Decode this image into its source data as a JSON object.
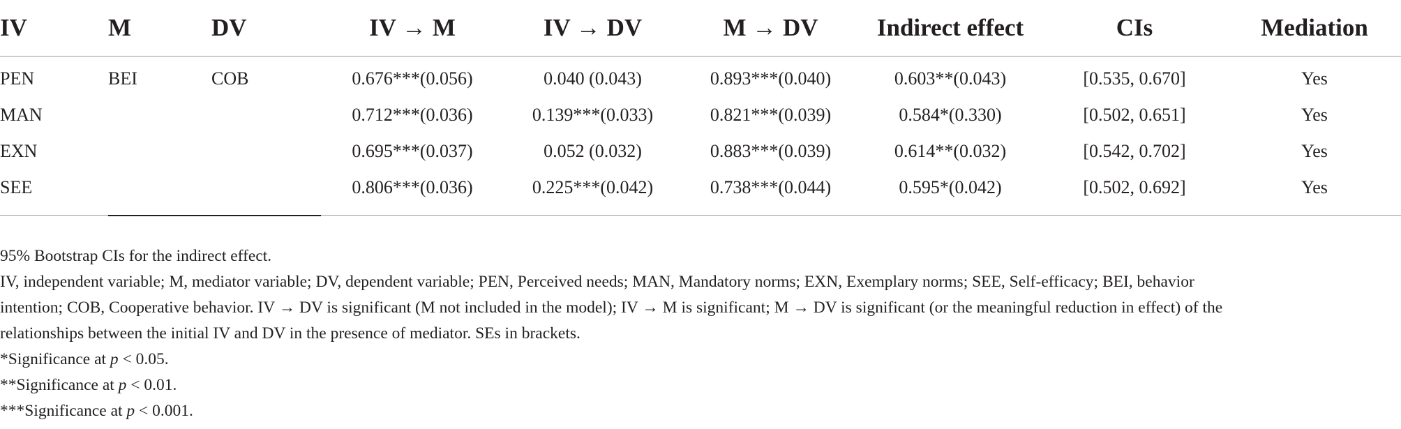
{
  "table": {
    "headers": [
      "IV",
      "M",
      "DV",
      "IV → M",
      "IV → DV",
      "M → DV",
      "Indirect effect",
      "CIs",
      "Mediation"
    ],
    "rows": [
      [
        "PEN",
        "BEI",
        "COB",
        "0.676***(0.056)",
        "0.040 (0.043)",
        "0.893***(0.040)",
        "0.603**(0.043)",
        "[0.535, 0.670]",
        "Yes"
      ],
      [
        "MAN",
        "",
        "",
        "0.712***(0.036)",
        "0.139***(0.033)",
        "0.821***(0.039)",
        "0.584*(0.330)",
        "[0.502, 0.651]",
        "Yes"
      ],
      [
        "EXN",
        "",
        "",
        "0.695***(0.037)",
        "0.052 (0.032)",
        "0.883***(0.039)",
        "0.614**(0.032)",
        "[0.542, 0.702]",
        "Yes"
      ],
      [
        "SEE",
        "",
        "",
        "0.806***(0.036)",
        "0.225***(0.042)",
        "0.738***(0.044)",
        "0.595*(0.042)",
        "[0.502, 0.692]",
        "Yes"
      ]
    ]
  },
  "notes": {
    "bootstrap": "95% Bootstrap CIs for the indirect effect.",
    "abbreviations_line1": "IV, independent variable; M, mediator variable; DV, dependent variable; PEN, Perceived needs; MAN, Mandatory norms; EXN, Exemplary norms; SEE, Self-efficacy; BEI, behavior",
    "abbreviations_line2": "intention; COB, Cooperative behavior. IV → DV is significant (M not included in the model); IV → M is significant; M → DV is significant (or the meaningful reduction in effect) of the",
    "abbreviations_line3": "relationships between the initial IV and DV in the presence of mediator. SEs in brackets.",
    "sig1_prefix": "*Significance at ",
    "sig1_p": "p",
    "sig1_suffix": " < 0.05.",
    "sig2_prefix": "**Significance at ",
    "sig2_p": "p",
    "sig2_suffix": " < 0.01.",
    "sig3_prefix": "***Significance at ",
    "sig3_p": "p",
    "sig3_suffix": " < 0.001."
  }
}
